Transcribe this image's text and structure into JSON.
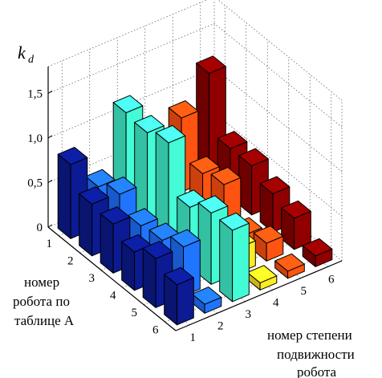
{
  "chart_data": {
    "type": "bar3d",
    "title": "",
    "zlabel_main": "k",
    "zlabel_sub": "d",
    "xlabel": [
      "номер",
      "робота по",
      "таблице А"
    ],
    "ylabel": [
      "номер степени",
      "подвижности",
      "робота"
    ],
    "x_categories": [
      "1",
      "2",
      "3",
      "4",
      "5",
      "6"
    ],
    "y_categories": [
      "1",
      "2",
      "3",
      "4",
      "5",
      "6"
    ],
    "z_ticks": [
      "0",
      "0,5",
      "1,0",
      "1,5"
    ],
    "zlim": [
      0,
      1.8
    ],
    "series_colors": [
      "#0b1a8c",
      "#1e6fff",
      "#40f0cc",
      "#ffe020",
      "#ff5010",
      "#8a0000"
    ],
    "values": [
      [
        0.83,
        0.45,
        1.15,
        0.05,
        0.83,
        1.2
      ],
      [
        0.58,
        0.56,
        1.12,
        0.08,
        0.4,
        0.55
      ],
      [
        0.55,
        0.4,
        1.2,
        0.1,
        0.47,
        0.55
      ],
      [
        0.43,
        0.43,
        0.67,
        0.25,
        0.1,
        0.43
      ],
      [
        0.55,
        0.55,
        0.8,
        0.28,
        0.2,
        0.35
      ],
      [
        0.45,
        0.1,
        0.8,
        0.08,
        0.08,
        0.12
      ]
    ]
  }
}
